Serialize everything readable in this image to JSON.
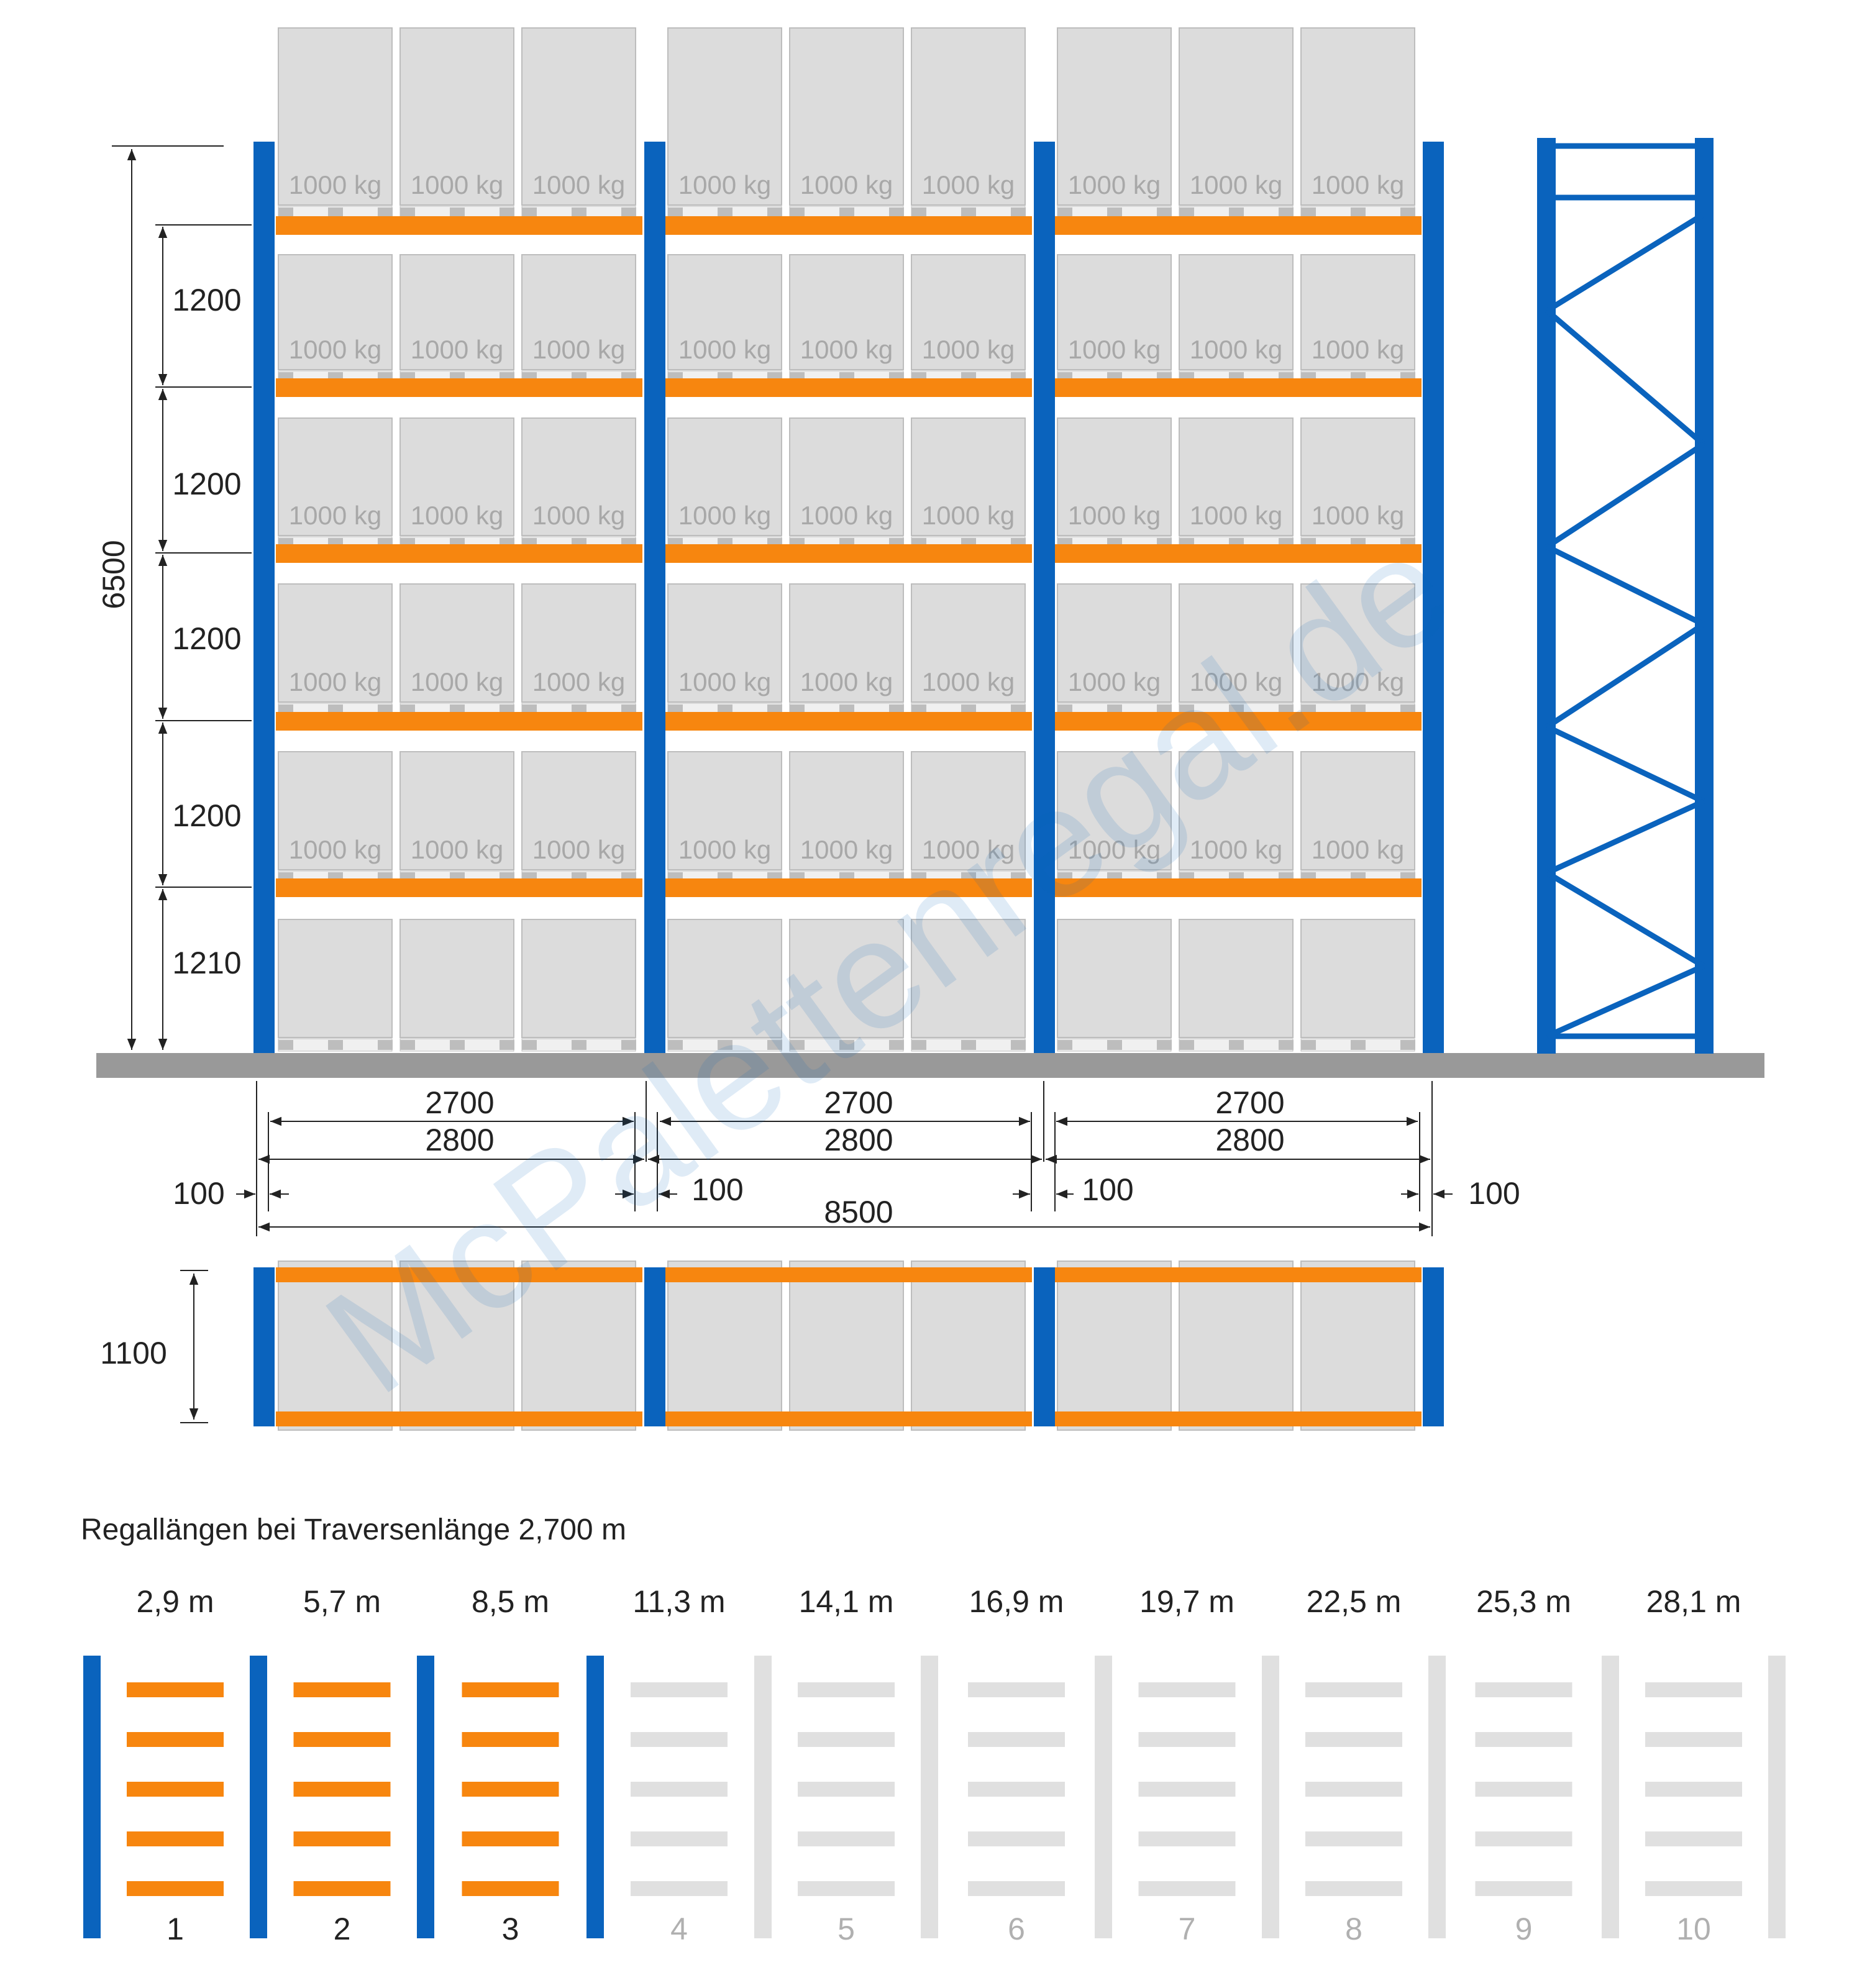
{
  "watermark": "McPalettenregal.de",
  "colors": {
    "upright": "#0a63bd",
    "beam": "#f7860f",
    "pallet_box": "#dcdcdc",
    "pallet_outline": "#bdbdbd",
    "floor": "#999999",
    "inactive": "#e0e0e0",
    "inactive_text": "#b0b0b0",
    "text": "#222222"
  },
  "rack": {
    "load_label": "1000 kg",
    "levels_with_label": 5,
    "levels_total": 6,
    "bays": 3,
    "pallets_per_bay": 3
  },
  "dimensions": {
    "total_height": "6500",
    "level_heights": [
      "1200",
      "1200",
      "1200",
      "1200",
      "1210"
    ],
    "beam_length": "2700",
    "bay_pitch": "2800",
    "edge_gap": "100",
    "total_length": "8500",
    "depth": "1100"
  },
  "length_table": {
    "title": "Regallängen bei Traversenlänge 2,700 m",
    "lengths": [
      "2,9 m",
      "5,7 m",
      "8,5 m",
      "11,3 m",
      "14,1 m",
      "16,9 m",
      "19,7 m",
      "22,5 m",
      "25,3 m",
      "28,1 m"
    ],
    "numbers": [
      "1",
      "2",
      "3",
      "4",
      "5",
      "6",
      "7",
      "8",
      "9",
      "10"
    ],
    "active_count": 3
  }
}
